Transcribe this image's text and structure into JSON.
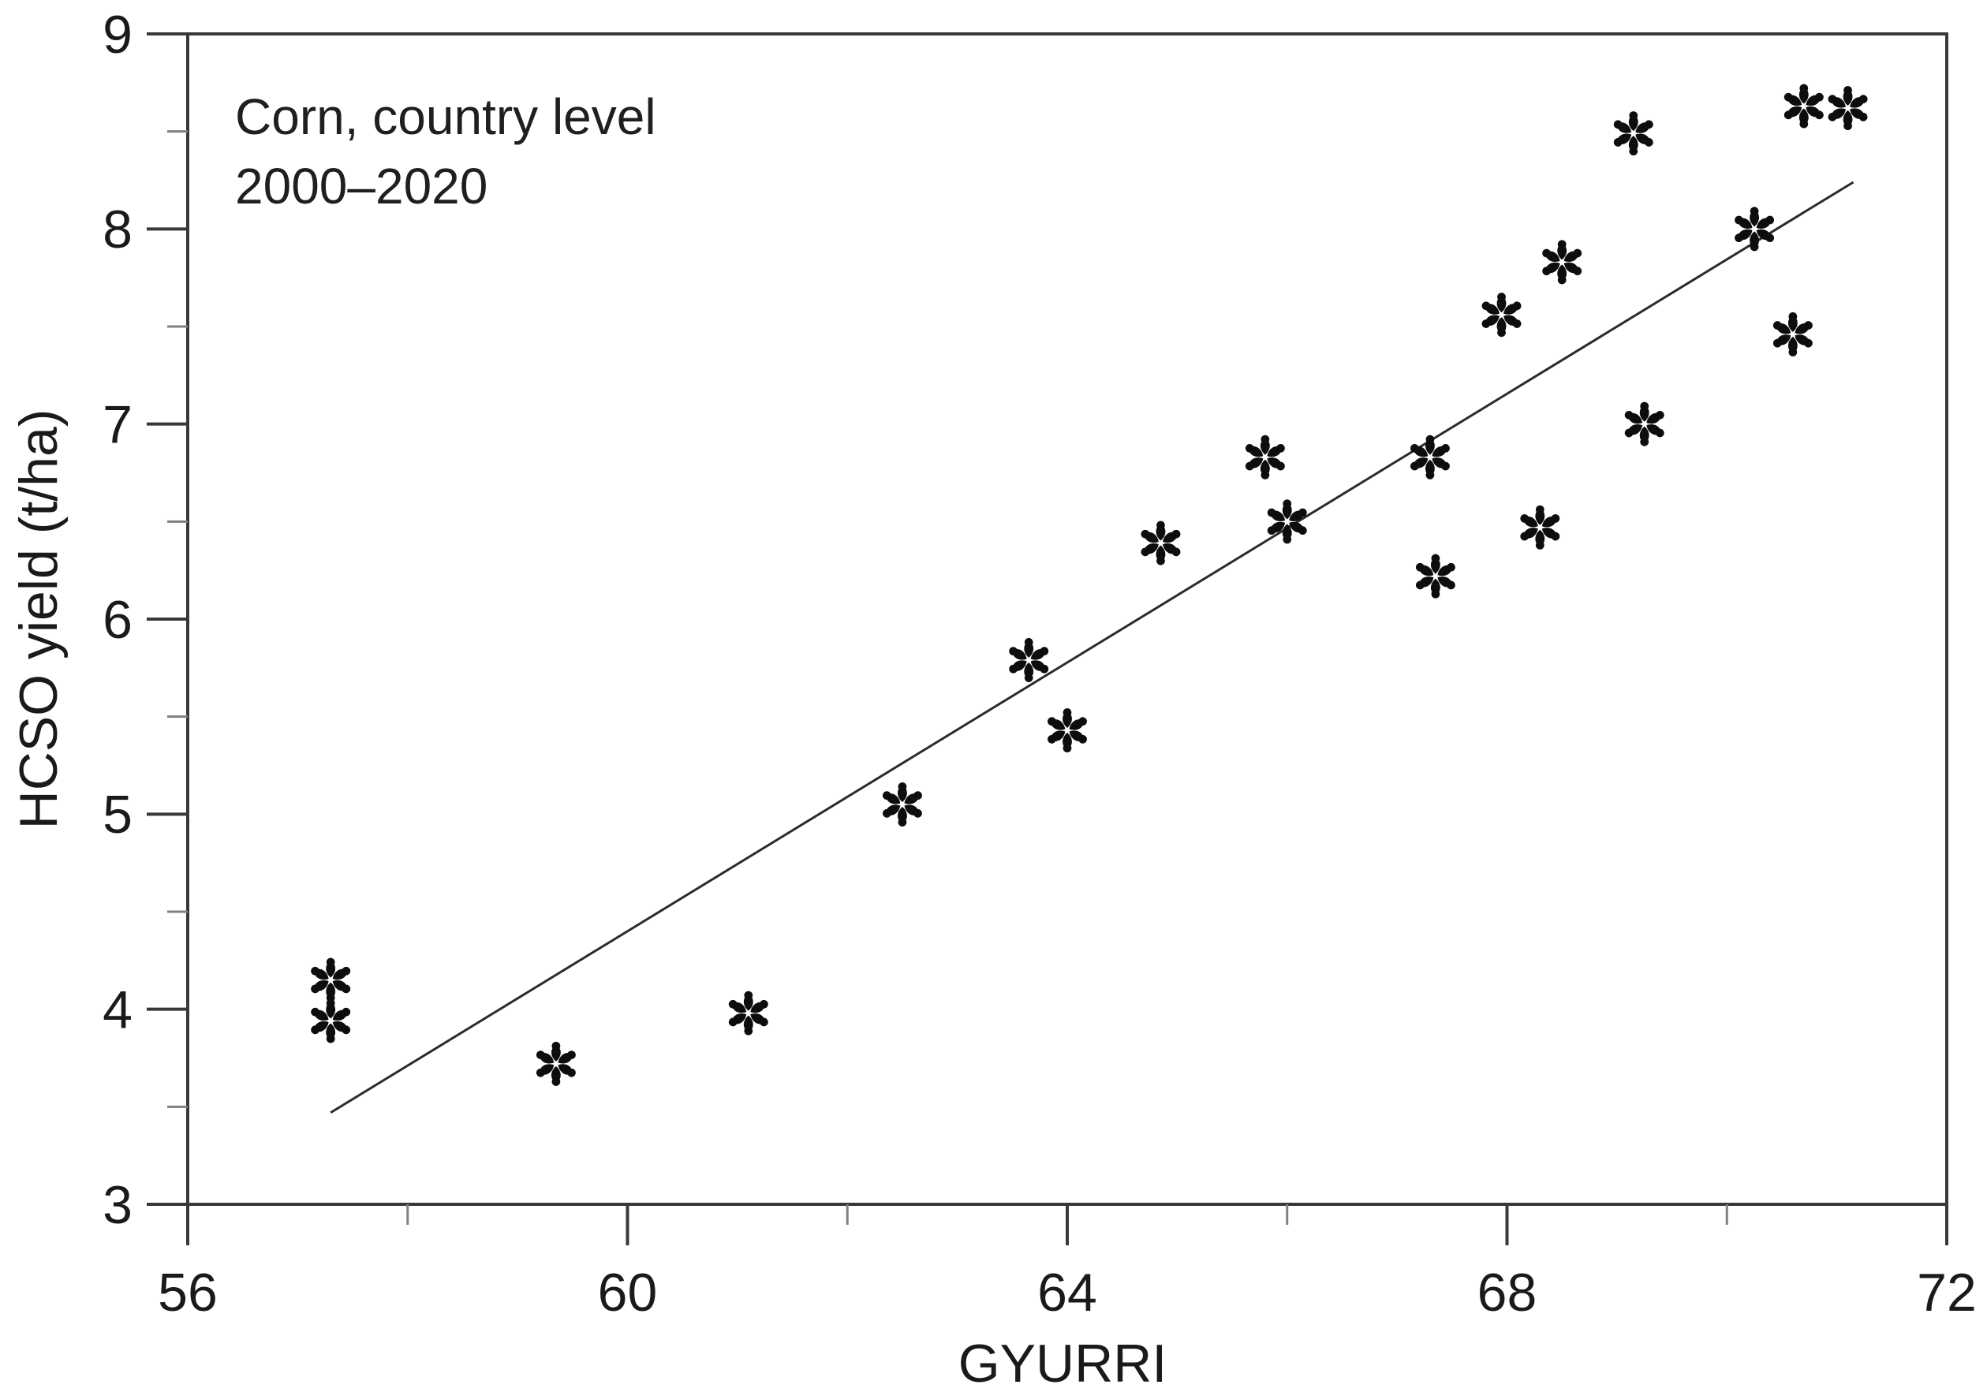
{
  "figure": {
    "background": "#ffffff",
    "annotation_line1": "Corn, country level",
    "annotation_line2": "2000–2020"
  },
  "chart_data": {
    "type": "scatter",
    "title": "Corn, country level 2000–2020",
    "xlabel": "GYURRI",
    "ylabel": "HCSO yield (t/ha)",
    "xlim": [
      56,
      72
    ],
    "ylim": [
      3,
      9
    ],
    "x_major_ticks": [
      56,
      60,
      64,
      68,
      72
    ],
    "x_minor_ticks": [
      58,
      62,
      66,
      70
    ],
    "y_major_ticks": [
      3,
      4,
      5,
      6,
      7,
      8,
      9
    ],
    "y_minor_ticks": [
      3.5,
      4.5,
      5.5,
      6.5,
      7.5,
      8.5
    ],
    "grid": false,
    "frame": "box",
    "legend": "none",
    "marker": "six-petal-asterisk",
    "points": [
      [
        57.3,
        4.15
      ],
      [
        57.3,
        3.94
      ],
      [
        59.35,
        3.72
      ],
      [
        61.1,
        3.98
      ],
      [
        62.5,
        5.05
      ],
      [
        63.65,
        5.79
      ],
      [
        64.0,
        5.43
      ],
      [
        64.85,
        6.39
      ],
      [
        65.8,
        6.83
      ],
      [
        66.0,
        6.5
      ],
      [
        67.3,
        6.83
      ],
      [
        67.35,
        6.22
      ],
      [
        67.95,
        7.56
      ],
      [
        68.3,
        6.47
      ],
      [
        68.5,
        7.83
      ],
      [
        69.15,
        8.49
      ],
      [
        69.25,
        7.0
      ],
      [
        70.25,
        8.0
      ],
      [
        70.6,
        7.46
      ],
      [
        70.7,
        8.63
      ],
      [
        71.1,
        8.62
      ]
    ],
    "trend_line": {
      "x1": 57.3,
      "y1": 3.47,
      "x2": 71.15,
      "y2": 8.24
    },
    "colors": {
      "marker": "#0d0d0d",
      "trend_line": "#2b2b2b",
      "frame": "#383838",
      "major_tick": "#383838",
      "minor_tick": "#808080",
      "text": "#1a1a1a"
    }
  }
}
